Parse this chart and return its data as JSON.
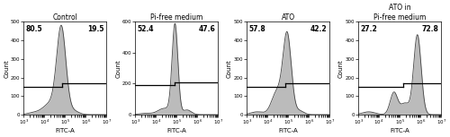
{
  "panels": [
    {
      "title": "Control",
      "left_pct": "80.5",
      "right_pct": "19.5",
      "ylim": [
        0,
        500
      ],
      "yticks": [
        0,
        100,
        200,
        300,
        400,
        500
      ],
      "ylabel": "Count",
      "gate_x_log": 4.85,
      "gate_y": 150,
      "gate_step": 20,
      "histogram_type": "control"
    },
    {
      "title": "Pi-free medium",
      "left_pct": "52.4",
      "right_pct": "47.6",
      "ylim": [
        0,
        600
      ],
      "yticks": [
        0,
        200,
        400,
        600
      ],
      "ylabel": "Count",
      "gate_x_log": 4.9,
      "gate_y": 190,
      "gate_step": 20,
      "histogram_type": "pi_free"
    },
    {
      "title": "ATO",
      "left_pct": "57.8",
      "right_pct": "42.2",
      "ylim": [
        0,
        500
      ],
      "yticks": [
        0,
        100,
        200,
        300,
        400,
        500
      ],
      "ylabel": "Count",
      "gate_x_log": 4.88,
      "gate_y": 150,
      "gate_step": 20,
      "histogram_type": "ato"
    },
    {
      "title": "ATO in\nPi-free medium",
      "left_pct": "27.2",
      "right_pct": "72.8",
      "ylim": [
        0,
        500
      ],
      "yticks": [
        0,
        100,
        200,
        300,
        400,
        500
      ],
      "ylabel": "Count",
      "gate_x_log": 5.15,
      "gate_y": 150,
      "gate_step": 20,
      "histogram_type": "ato_pi_free"
    }
  ],
  "fill_color": "#b0b0b0",
  "fill_alpha": 0.85,
  "edge_color": "#444444",
  "gate_line_color": "#000000",
  "background_color": "#ffffff",
  "xlabel": "FITC-A",
  "xlog_min": 3,
  "xlog_max": 7
}
